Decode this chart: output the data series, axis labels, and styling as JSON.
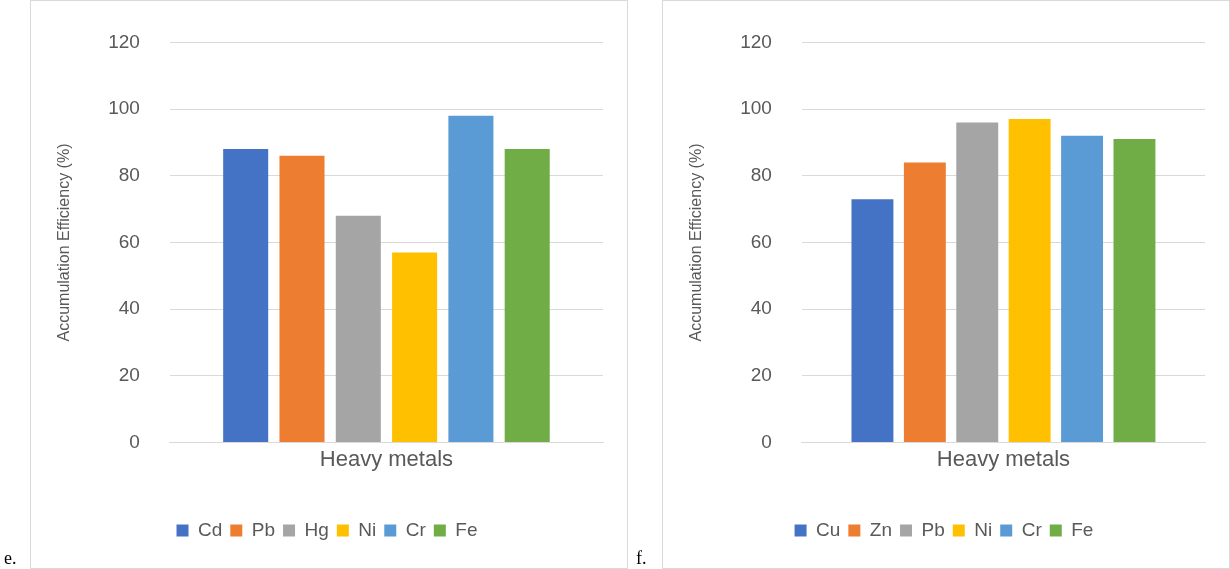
{
  "chart_data": [
    {
      "type": "bar",
      "xlabel": "Heavy metals",
      "ylabel": "Accumulation Efficiency (%)",
      "categories": [
        null
      ],
      "series": [
        {
          "name": "Cd",
          "color": "#4472c4",
          "values": [
            88
          ]
        },
        {
          "name": "Pb",
          "color": "#ed7d31",
          "values": [
            86
          ]
        },
        {
          "name": "Hg",
          "color": "#a5a5a5",
          "values": [
            68
          ]
        },
        {
          "name": "Ni",
          "color": "#ffc000",
          "values": [
            57
          ]
        },
        {
          "name": "Cr",
          "color": "#5b9bd5",
          "values": [
            98
          ]
        },
        {
          "name": "Fe",
          "color": "#70ad47",
          "values": [
            88
          ]
        }
      ],
      "ylim": [
        0,
        120
      ],
      "yticks": [
        0,
        20,
        40,
        60,
        80,
        100,
        120
      ],
      "grid": "y",
      "legend": "bottom",
      "tick_labels": "y",
      "annotations": [
        "e."
      ]
    },
    {
      "type": "bar",
      "xlabel": "Heavy metals",
      "ylabel": "Accumulation Efficiency (%)",
      "categories": [
        null
      ],
      "series": [
        {
          "name": "Cu",
          "color": "#4472c4",
          "values": [
            73
          ]
        },
        {
          "name": "Zn",
          "color": "#ed7d31",
          "values": [
            84
          ]
        },
        {
          "name": "Pb",
          "color": "#a5a5a5",
          "values": [
            96
          ]
        },
        {
          "name": "Ni",
          "color": "#ffc000",
          "values": [
            97
          ]
        },
        {
          "name": "Cr",
          "color": "#5b9bd5",
          "values": [
            92
          ]
        },
        {
          "name": "Fe",
          "color": "#70ad47",
          "values": [
            91
          ]
        }
      ],
      "ylim": [
        0,
        120
      ],
      "yticks": [
        0,
        20,
        40,
        60,
        80,
        100,
        120
      ],
      "grid": "y",
      "legend": "bottom",
      "tick_labels": "y",
      "annotations": [
        "f."
      ]
    }
  ]
}
